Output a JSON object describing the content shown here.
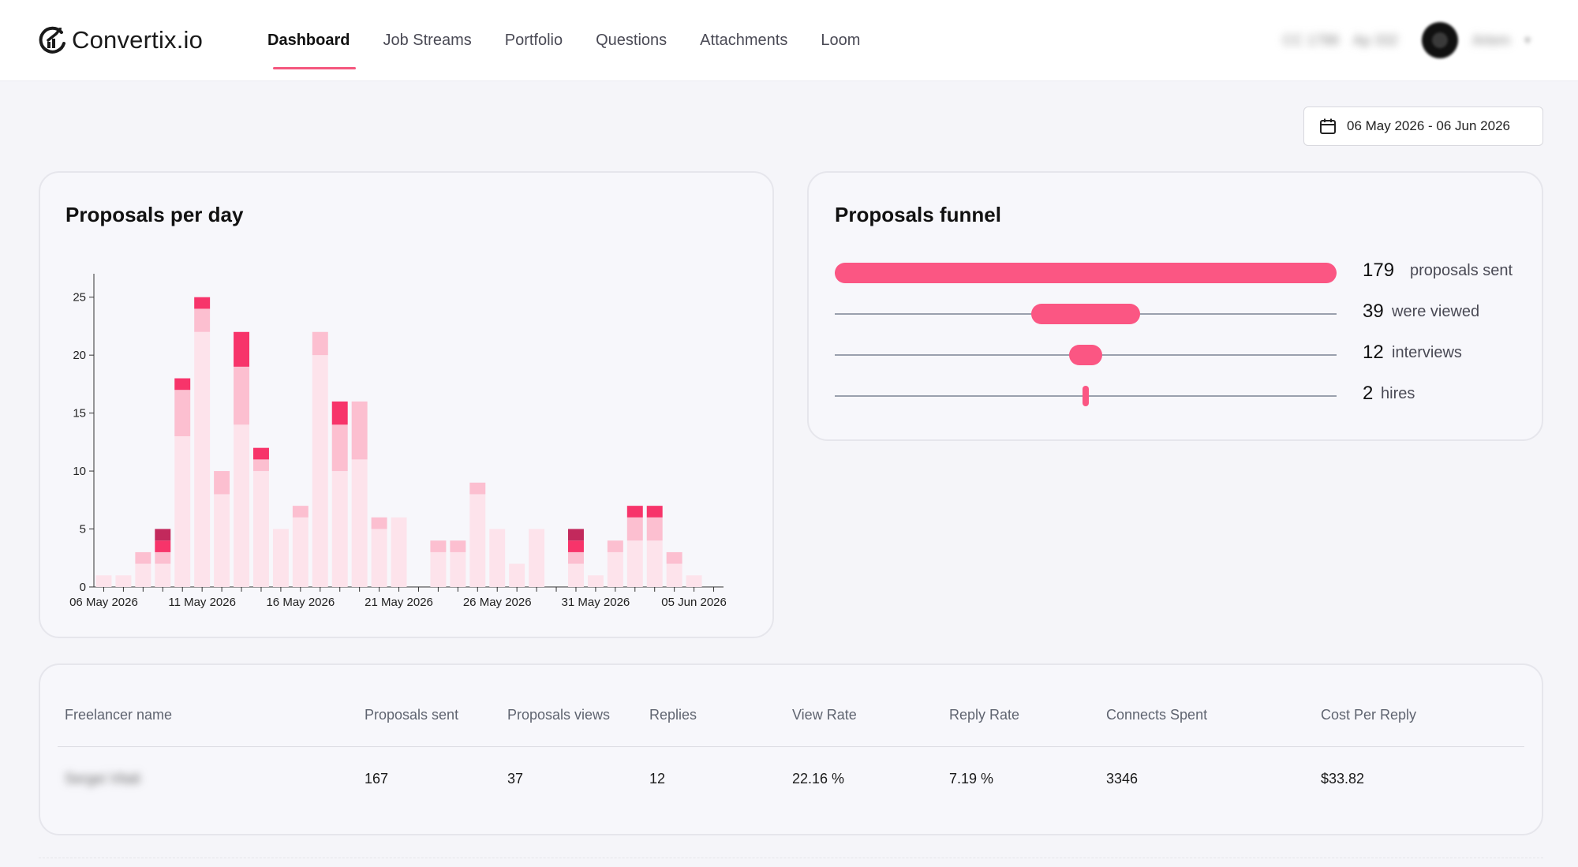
{
  "app": {
    "name": "Convertix.io"
  },
  "nav": {
    "items": [
      {
        "label": "Dashboard",
        "active": true
      },
      {
        "label": "Job Streams",
        "active": false
      },
      {
        "label": "Portfolio",
        "active": false
      },
      {
        "label": "Questions",
        "active": false
      },
      {
        "label": "Attachments",
        "active": false
      },
      {
        "label": "Loom",
        "active": false
      }
    ]
  },
  "user": {
    "info_1": "CC 1788",
    "info_2": "Ap 332",
    "name": "Artem"
  },
  "date_range": {
    "label": "06 May 2026 - 06 Jun 2026"
  },
  "colors": {
    "accent": "#fb5683",
    "level1": "#fde3eb",
    "level2": "#fcbfd0",
    "level3": "#f7346a",
    "level4": "#c2295c"
  },
  "proposals_chart": {
    "title": "Proposals per day",
    "chart_data": {
      "type": "bar",
      "stacked": true,
      "x_tick_labels": [
        "06 May 2026",
        "11 May 2026",
        "16 May 2026",
        "21 May 2026",
        "26 May 2026",
        "31 May 2026",
        "05 Jun 2026"
      ],
      "y_ticks": [
        0,
        5,
        10,
        15,
        20,
        25
      ],
      "ylim": [
        0,
        26
      ],
      "grid": false,
      "categories": [
        "06 May 2026",
        "07 May 2026",
        "08 May 2026",
        "09 May 2026",
        "10 May 2026",
        "11 May 2026",
        "12 May 2026",
        "13 May 2026",
        "14 May 2026",
        "15 May 2026",
        "16 May 2026",
        "17 May 2026",
        "18 May 2026",
        "19 May 2026",
        "20 May 2026",
        "21 May 2026",
        "22 May 2026",
        "23 May 2026",
        "24 May 2026",
        "25 May 2026",
        "26 May 2026",
        "27 May 2026",
        "28 May 2026",
        "29 May 2026",
        "30 May 2026",
        "31 May 2026",
        "01 Jun 2026",
        "02 Jun 2026",
        "03 Jun 2026",
        "04 Jun 2026",
        "05 Jun 2026",
        "06 Jun 2026"
      ],
      "series": [
        {
          "values": [
            1,
            1,
            2,
            2,
            13,
            22,
            8,
            14,
            10,
            5,
            6,
            20,
            10,
            11,
            5,
            6,
            0,
            3,
            3,
            8,
            5,
            2,
            5,
            0,
            2,
            1,
            3,
            4,
            4,
            2,
            1,
            0
          ]
        },
        {
          "values": [
            0,
            0,
            1,
            1,
            4,
            2,
            2,
            5,
            1,
            0,
            1,
            2,
            4,
            5,
            1,
            0,
            0,
            1,
            1,
            1,
            0,
            0,
            0,
            0,
            1,
            0,
            1,
            2,
            2,
            1,
            0,
            0
          ]
        },
        {
          "values": [
            0,
            0,
            0,
            1,
            1,
            1,
            0,
            3,
            1,
            0,
            0,
            0,
            2,
            0,
            0,
            0,
            0,
            0,
            0,
            0,
            0,
            0,
            0,
            0,
            1,
            0,
            0,
            1,
            1,
            0,
            0,
            0
          ]
        },
        {
          "values": [
            0,
            0,
            0,
            1,
            0,
            0,
            0,
            0,
            0,
            0,
            0,
            0,
            0,
            0,
            0,
            0,
            0,
            0,
            0,
            0,
            0,
            0,
            0,
            0,
            1,
            0,
            0,
            0,
            0,
            0,
            0,
            0
          ]
        }
      ]
    }
  },
  "funnel": {
    "title": "Proposals funnel",
    "max": 179,
    "rows": [
      {
        "value": 179,
        "label": "proposals sent"
      },
      {
        "value": 39,
        "label": "were viewed"
      },
      {
        "value": 12,
        "label": "interviews"
      },
      {
        "value": 2,
        "label": "hires"
      }
    ]
  },
  "table": {
    "headers": [
      "Freelancer name",
      "Proposals sent",
      "Proposals views",
      "Replies",
      "View Rate",
      "Reply Rate",
      "Connects Spent",
      "Cost Per Reply"
    ],
    "rows": [
      [
        "Sergei Vitali",
        "167",
        "37",
        "12",
        "22.16 %",
        "7.19 %",
        "3346",
        "$33.82"
      ]
    ]
  }
}
